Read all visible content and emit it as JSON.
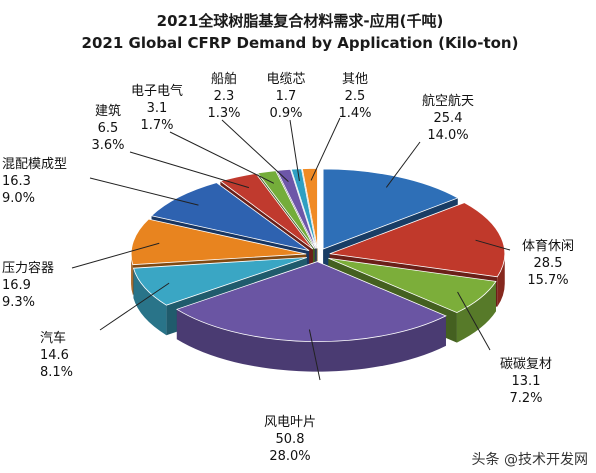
{
  "chart_data": {
    "type": "pie",
    "title": "2021全球树脂基复合材料需求-应用(千吨)",
    "subtitle": "2021 Global CFRP Demand by Application (Kilo-ton)",
    "slices": [
      {
        "label": "航空航天",
        "value": 25.4,
        "percent": "14.0%",
        "color": "#2e6fb7"
      },
      {
        "label": "体育休闲",
        "value": 28.5,
        "percent": "15.7%",
        "color": "#c0392b"
      },
      {
        "label": "碳碳复材",
        "value": 13.1,
        "percent": "7.2%",
        "color": "#7cae3a"
      },
      {
        "label": "风电叶片",
        "value": 50.8,
        "percent": "28.0%",
        "color": "#6a55a3"
      },
      {
        "label": "汽车",
        "value": 14.6,
        "percent": "8.1%",
        "color": "#3aa6c4"
      },
      {
        "label": "压力容器",
        "value": 16.9,
        "percent": "9.3%",
        "color": "#e8841f"
      },
      {
        "label": "混配模成型",
        "value": 16.3,
        "percent": "9.0%",
        "color": "#2e62b0"
      },
      {
        "label": "建筑",
        "value": 6.5,
        "percent": "3.6%",
        "color": "#c03a2e"
      },
      {
        "label": "电子电气",
        "value": 3.1,
        "percent": "1.7%",
        "color": "#74ad3a"
      },
      {
        "label": "船舶",
        "value": 2.3,
        "percent": "1.3%",
        "color": "#6d56a8"
      },
      {
        "label": "电缆芯",
        "value": 1.7,
        "percent": "0.9%",
        "color": "#2f9fc2"
      },
      {
        "label": "其他",
        "value": 2.5,
        "percent": "1.4%",
        "color": "#f08a24"
      }
    ]
  },
  "watermark": "头条 @技术开发网"
}
